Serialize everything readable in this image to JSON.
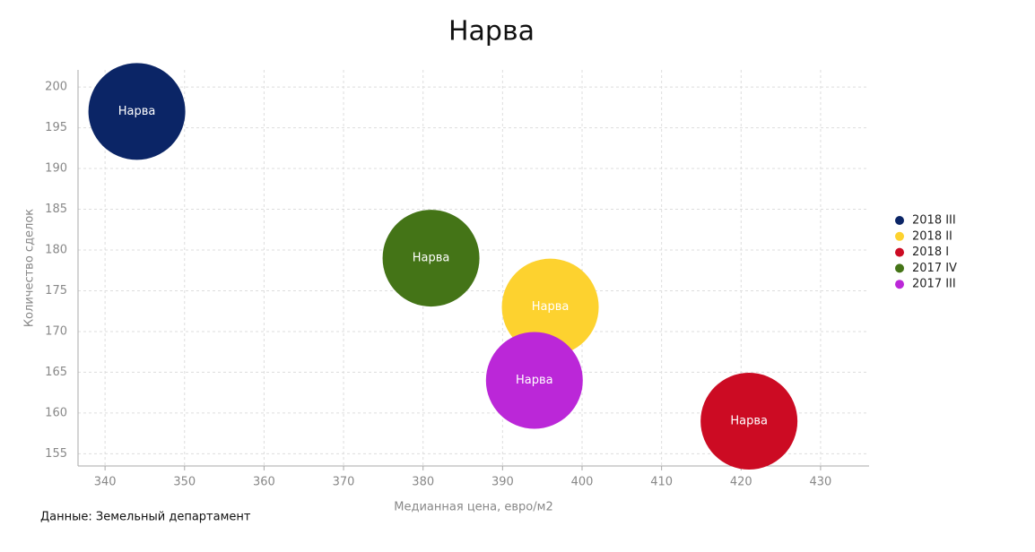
{
  "chart_data": {
    "type": "bubble",
    "title": "Нарва",
    "x_label": "Медианная цена, евро/м2",
    "y_label": "Количество сделок",
    "source": "Данные: Земельный департамент",
    "xlim": [
      336.6,
      436.1
    ],
    "ylim": [
      153.5,
      202.1
    ],
    "xticks": [
      340,
      350,
      360,
      370,
      380,
      390,
      400,
      410,
      420,
      430
    ],
    "yticks": [
      155,
      160,
      165,
      170,
      175,
      180,
      185,
      190,
      195,
      200
    ],
    "grid": true,
    "legend": "right",
    "series": [
      {
        "name": "2018 III",
        "color": "#0b2566",
        "label": "Нарва",
        "x": [
          344
        ],
        "values": [
          197
        ]
      },
      {
        "name": "2018 II",
        "color": "#fdd22f",
        "label": "Нарва",
        "x": [
          396
        ],
        "values": [
          173
        ]
      },
      {
        "name": "2018 I",
        "color": "#cc0b23",
        "label": "Нарва",
        "x": [
          421
        ],
        "values": [
          159
        ]
      },
      {
        "name": "2017 IV",
        "color": "#447417",
        "label": "Нарва",
        "x": [
          381
        ],
        "values": [
          179
        ]
      },
      {
        "name": "2017 III",
        "color": "#bb27d8",
        "label": "Нарва",
        "x": [
          394
        ],
        "values": [
          164
        ]
      }
    ]
  }
}
